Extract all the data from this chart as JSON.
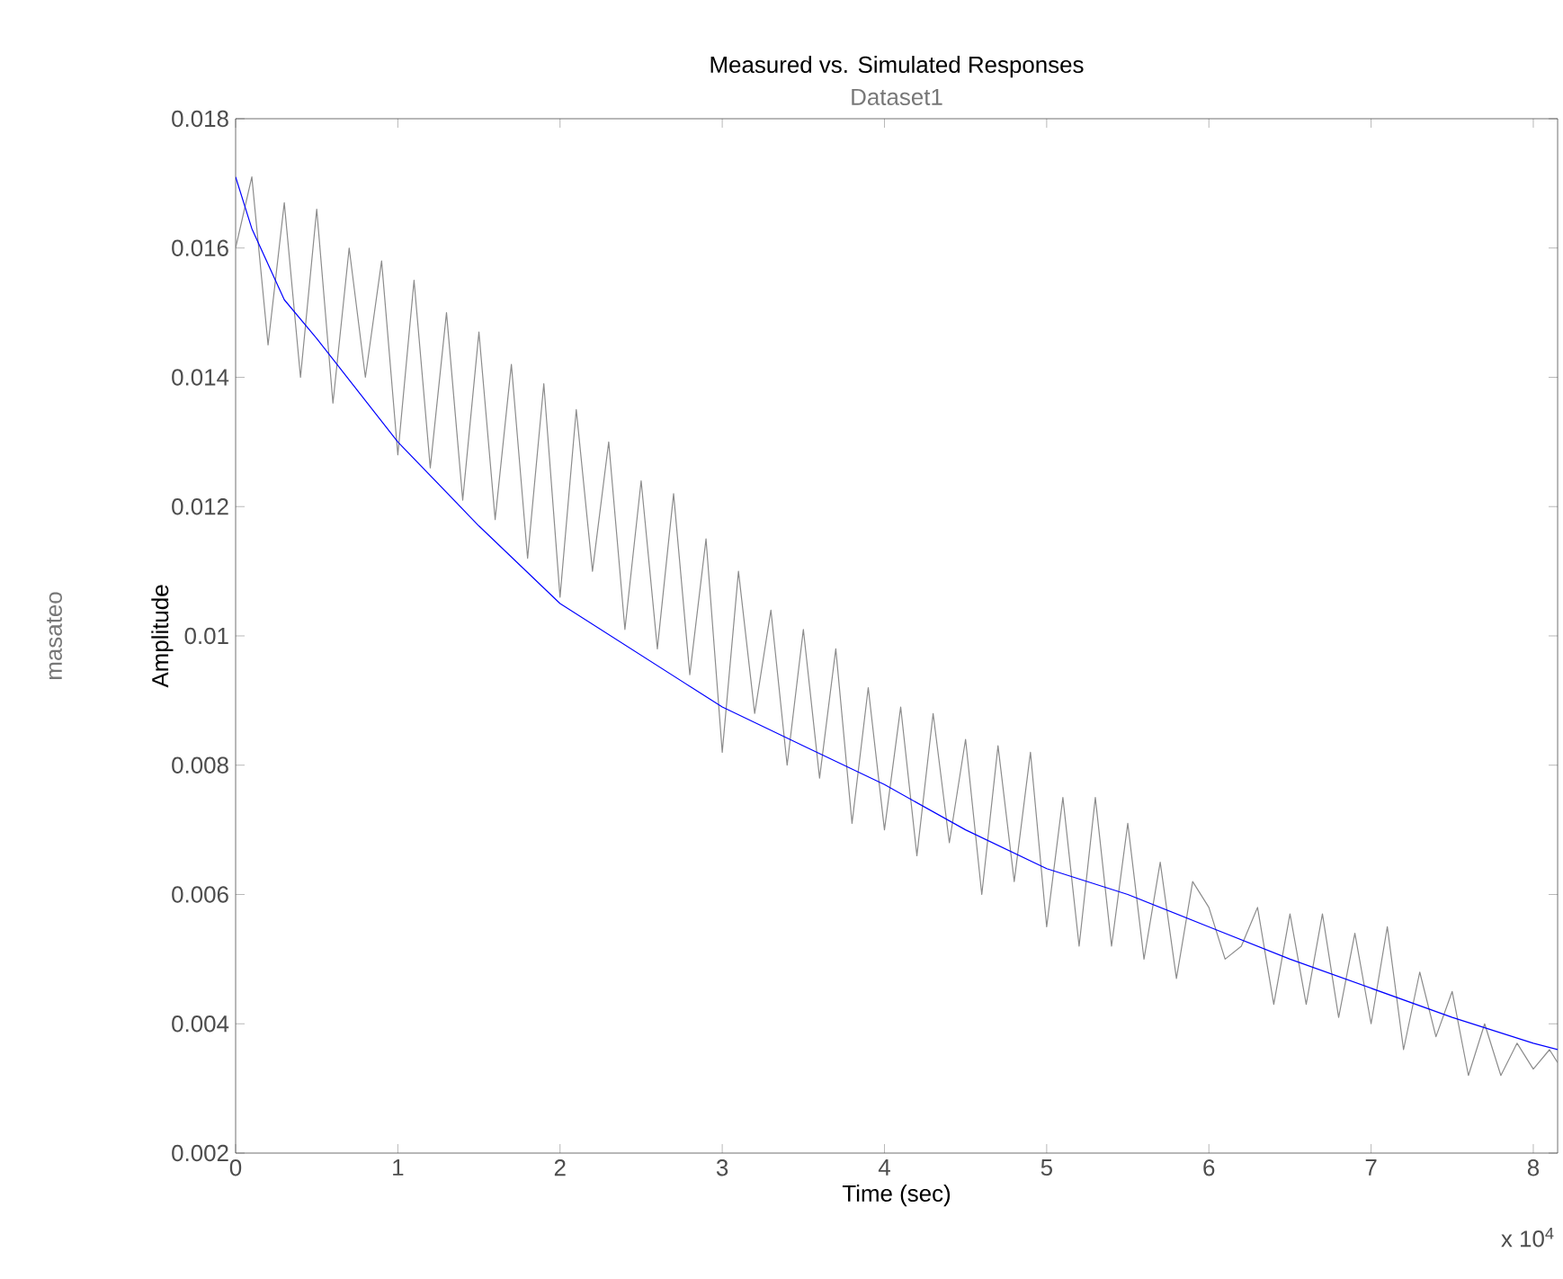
{
  "chart_data": {
    "type": "line",
    "title": "Measured vs. Simulated Responses",
    "subtitle": "Dataset1",
    "xlabel": "Time (sec)",
    "ylabel": "Amplitude",
    "annotations": [
      "masateo",
      "x 10$^{4}$"
    ],
    "xlim": [
      0,
      8.15
    ],
    "ylim": [
      0.002,
      0.018
    ],
    "xticks": [
      0,
      1,
      2,
      3,
      4,
      5,
      6,
      7,
      8
    ],
    "yticks": [
      0.002,
      0.004,
      0.006,
      0.008,
      0.01,
      0.012,
      0.014,
      0.016,
      0.018
    ],
    "grid": false,
    "marker": "none",
    "line_style": "solid",
    "series": [
      {
        "color": "#8c8c8c",
        "x": [
          0,
          0.1,
          0.2,
          0.3,
          0.4,
          0.5,
          0.6,
          0.7,
          0.8,
          0.9,
          1,
          1.1,
          1.2,
          1.3,
          1.4,
          1.5,
          1.6,
          1.7,
          1.8,
          1.9,
          2,
          2.1,
          2.2,
          2.3,
          2.4,
          2.5,
          2.6,
          2.7,
          2.8,
          2.9,
          3,
          3.1,
          3.2,
          3.3,
          3.4,
          3.5,
          3.6,
          3.7,
          3.8,
          3.9,
          4,
          4.1,
          4.2,
          4.3,
          4.4,
          4.5,
          4.6,
          4.7,
          4.8,
          4.9,
          5,
          5.1,
          5.2,
          5.3,
          5.4,
          5.5,
          5.6,
          5.7,
          5.8,
          5.9,
          6,
          6.1,
          6.2,
          6.3,
          6.4,
          6.5,
          6.6,
          6.7,
          6.8,
          6.9,
          7,
          7.1,
          7.2,
          7.3,
          7.4,
          7.5,
          7.6,
          7.7,
          7.8,
          7.9,
          8,
          8.1,
          8.15
        ],
        "values": [
          0.016,
          0.0171,
          0.0145,
          0.0167,
          0.014,
          0.0166,
          0.0136,
          0.016,
          0.014,
          0.0158,
          0.0128,
          0.0155,
          0.0126,
          0.015,
          0.0121,
          0.0147,
          0.0118,
          0.0142,
          0.0112,
          0.0139,
          0.0106,
          0.0135,
          0.011,
          0.013,
          0.0101,
          0.0124,
          0.0098,
          0.0122,
          0.0094,
          0.0115,
          0.0082,
          0.011,
          0.0088,
          0.0104,
          0.008,
          0.0101,
          0.0078,
          0.0098,
          0.0071,
          0.0092,
          0.007,
          0.0089,
          0.0066,
          0.0088,
          0.0068,
          0.0084,
          0.006,
          0.0083,
          0.0062,
          0.0082,
          0.0055,
          0.0075,
          0.0052,
          0.0075,
          0.0052,
          0.0071,
          0.005,
          0.0065,
          0.0047,
          0.0062,
          0.0058,
          0.005,
          0.0052,
          0.0058,
          0.0043,
          0.0057,
          0.0043,
          0.0057,
          0.0041,
          0.0054,
          0.004,
          0.0055,
          0.0036,
          0.0048,
          0.0038,
          0.0045,
          0.0032,
          0.004,
          0.0032,
          0.0037,
          0.0033,
          0.0036,
          0.0034
        ]
      },
      {
        "color": "#0000ff",
        "x": [
          0,
          0.1,
          0.3,
          0.5,
          1,
          1.5,
          2,
          2.5,
          3,
          3.5,
          4,
          4.5,
          5,
          5.5,
          6,
          6.5,
          7,
          7.5,
          8,
          8.15
        ],
        "values": [
          0.0171,
          0.0163,
          0.0152,
          0.0146,
          0.013,
          0.0117,
          0.0105,
          0.0097,
          0.0089,
          0.0083,
          0.0077,
          0.007,
          0.0064,
          0.006,
          0.0055,
          0.005,
          0.00455,
          0.0041,
          0.0037,
          0.0036
        ]
      }
    ]
  }
}
